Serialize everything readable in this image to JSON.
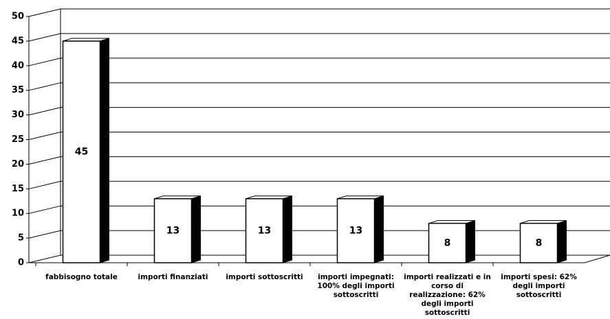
{
  "chart_data": {
    "type": "bar",
    "categories": [
      "fabbisogno totale",
      "importi finanziati",
      "importi sottoscritti",
      "importi impegnati: 100% degli importi sottoscritti",
      "importi realizzati e in corso di realizzazione: 62% degli importi sottoscritti",
      "importi spesi: 62% degli importi sottoscritti"
    ],
    "values": [
      45,
      13,
      13,
      13,
      8,
      8
    ],
    "color": "#ffffff",
    "side_color": "#000000",
    "ylim": [
      0,
      50
    ],
    "yticks": [
      0,
      5,
      10,
      15,
      20,
      25,
      30,
      35,
      40,
      45,
      50
    ],
    "grid": true
  }
}
